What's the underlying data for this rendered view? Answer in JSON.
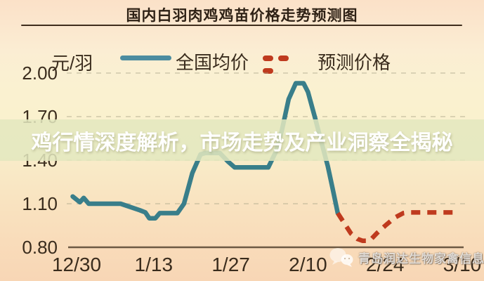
{
  "title": "国内白羽肉鸡鸡苗价格走势预测图",
  "overlay_banner": {
    "text": "鸡行情深度解析，市场走势及产业洞察全揭秘"
  },
  "legend": {
    "unit": "元/羽",
    "series": [
      {
        "name": "全国均价",
        "style": "solid",
        "color": "#397E8A"
      },
      {
        "name": "预测价格",
        "style": "dashed",
        "color": "#BF3A1E"
      }
    ]
  },
  "watermark": {
    "icon": "wechat-icon",
    "text": "青岛润达生物家禽信息"
  },
  "colors": {
    "national_avg_line": "#397E8A",
    "forecast_line": "#BF3A1E",
    "banner_bg": "#E3E8BF",
    "grid_line": "#ABA78A",
    "axis_line": "#55432F",
    "text": "#3A2C1D",
    "background_top": "#FBE1C8",
    "background_bottom": "#F8D6B5"
  },
  "chart_data": {
    "type": "line",
    "title": "国内白羽肉鸡鸡苗价格走势预测图",
    "ylabel": "元/羽",
    "xlabel": "",
    "ylim": [
      0.8,
      2.0
    ],
    "grid": "horizontal-dashed",
    "legend_position": "top",
    "x_ticks": {
      "labels": [
        "12/30",
        "1/13",
        "1/27",
        "2/10",
        "2/24",
        "3/10"
      ],
      "days": [
        0,
        14,
        28,
        42,
        56,
        70
      ]
    },
    "y_ticks": {
      "labels": [
        "2.00",
        "1.70",
        "1.40",
        "1.10",
        "0.80"
      ],
      "values": [
        2.0,
        1.7,
        1.4,
        1.1,
        0.8
      ]
    },
    "series": [
      {
        "name": "全国均价",
        "style": "solid",
        "color": "#397E8A",
        "points": [
          [
            -0.7,
            1.15
          ],
          [
            0.6,
            1.11
          ],
          [
            1.3,
            1.14
          ],
          [
            2.2,
            1.1
          ],
          [
            8,
            1.1
          ],
          [
            11.5,
            1.055
          ],
          [
            12.5,
            1.04
          ],
          [
            13.2,
            1.0
          ],
          [
            14.3,
            1.0
          ],
          [
            15.1,
            1.035
          ],
          [
            18.3,
            1.035
          ],
          [
            19.5,
            1.1
          ],
          [
            21,
            1.31
          ],
          [
            22.5,
            1.44
          ],
          [
            23.4,
            1.45
          ],
          [
            26,
            1.45
          ],
          [
            27.5,
            1.39
          ],
          [
            28.7,
            1.35
          ],
          [
            34.8,
            1.35
          ],
          [
            36.2,
            1.46
          ],
          [
            37.3,
            1.61
          ],
          [
            38.5,
            1.82
          ],
          [
            39.8,
            1.93
          ],
          [
            41.2,
            1.93
          ],
          [
            42,
            1.87
          ],
          [
            43.3,
            1.69
          ],
          [
            44.4,
            1.53
          ],
          [
            45.6,
            1.36
          ],
          [
            46.5,
            1.2
          ],
          [
            47.4,
            1.035
          ]
        ]
      },
      {
        "name": "预测价格",
        "style": "dashed",
        "color": "#BF3A1E",
        "points": [
          [
            47.4,
            1.035
          ],
          [
            48.6,
            0.965
          ],
          [
            49.8,
            0.895
          ],
          [
            51.0,
            0.857
          ],
          [
            51.9,
            0.845
          ],
          [
            53.2,
            0.845
          ],
          [
            54.6,
            0.9
          ],
          [
            56.2,
            0.955
          ],
          [
            57.8,
            1.005
          ],
          [
            59.3,
            1.035
          ],
          [
            60.2,
            1.04
          ],
          [
            68.9,
            1.04
          ]
        ]
      }
    ]
  }
}
